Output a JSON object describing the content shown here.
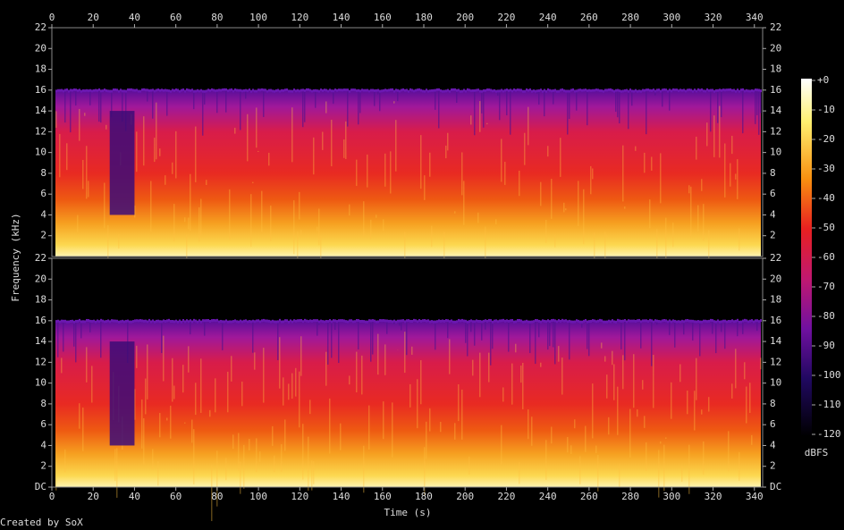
{
  "chart_data": [
    {
      "type": "spectrogram",
      "channel_position": "top",
      "xlim": [
        0,
        344
      ],
      "xticks": [
        0,
        20,
        40,
        60,
        80,
        100,
        120,
        140,
        160,
        180,
        200,
        220,
        240,
        260,
        280,
        300,
        320,
        340
      ],
      "ylim": [
        0,
        22
      ],
      "yticks": [
        2,
        4,
        6,
        8,
        10,
        12,
        14,
        16,
        18,
        20,
        22
      ]
    },
    {
      "type": "spectrogram",
      "channel_position": "bottom",
      "xlim": [
        0,
        344
      ],
      "xticks": [
        0,
        20,
        40,
        60,
        80,
        100,
        120,
        140,
        160,
        180,
        200,
        220,
        240,
        260,
        280,
        300,
        320,
        340
      ],
      "ylim": [
        0,
        22
      ],
      "yticks": [
        {
          "value": 0,
          "label": "DC"
        },
        2,
        4,
        6,
        8,
        10,
        12,
        14,
        16,
        18,
        20,
        22
      ]
    }
  ],
  "ylabel": "Frequency (kHz)",
  "xlabel": "Time (s)",
  "colorbar": {
    "label": "dBFS",
    "lim": [
      -120,
      0
    ],
    "ticks": [
      {
        "value": 0,
        "label": "+0"
      },
      -10,
      -20,
      -30,
      -40,
      -50,
      -60,
      -70,
      -80,
      -90,
      -100,
      -110,
      -120
    ]
  },
  "footer": "Created by SoX"
}
